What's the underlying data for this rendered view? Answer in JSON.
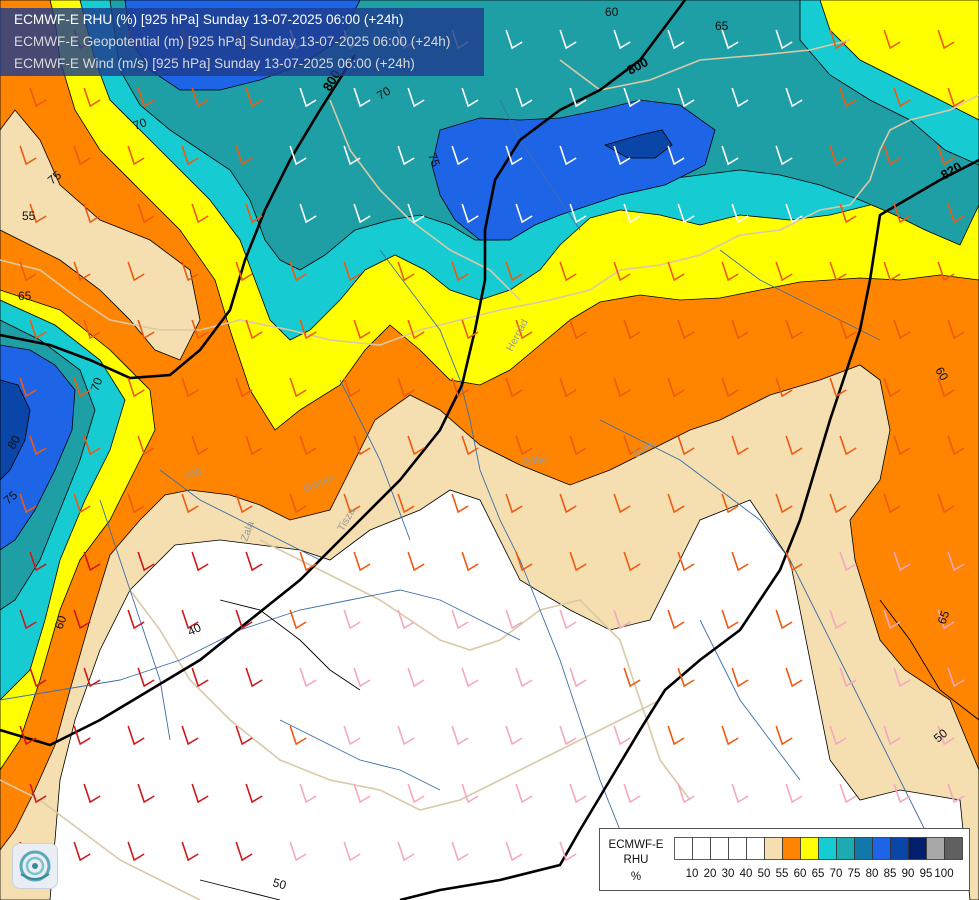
{
  "header": {
    "lines": [
      "ECMWF-E RHU (%) [925 hPa] Sunday 13-07-2025 06:00 (+24h)",
      "ECMWF-E Geopotential (m) [925 hPa] Sunday 13-07-2025 06:00 (+24h)",
      "ECMWF-E Wind (m/s) [925 hPa] Sunday 13-07-2025 06:00 (+24h)"
    ]
  },
  "contour_labels": {
    "rhu": [
      "60",
      "65",
      "70",
      "70",
      "75",
      "75",
      "55",
      "65",
      "70",
      "80",
      "75",
      "60",
      "40",
      "60",
      "65",
      "50",
      "50"
    ],
    "geopotential": [
      "800",
      "820",
      "800"
    ]
  },
  "place_labels": [
    "Hernád",
    "Vág",
    "Garam",
    "Tisza",
    "Zala",
    "Rába",
    "Bükk"
  ],
  "legend": {
    "title_lines": [
      "ECMWF-E",
      "RHU",
      "%"
    ],
    "ticks": [
      "10",
      "20",
      "30",
      "40",
      "50",
      "55",
      "60",
      "65",
      "70",
      "75",
      "80",
      "85",
      "90",
      "95",
      "100"
    ],
    "colors": [
      "#ffffff",
      "#ffffff",
      "#ffffff",
      "#ffffff",
      "#ffffff",
      "#f5deb0",
      "#ff8400",
      "#ffff00",
      "#17cbd2",
      "#1eaab1",
      "#1278aa",
      "#1e64e6",
      "#0a46a8",
      "#041e6e",
      "#a8a8a8",
      "#606060"
    ]
  },
  "colors": {
    "rhu_below_55": "#ffffff",
    "rhu_55": "#f5deb0",
    "rhu_60": "#ff8400",
    "rhu_65": "#ffff00",
    "rhu_70": "#17cbd2",
    "rhu_75": "#1e9fa6",
    "rhu_80": "#1e64e6",
    "rhu_85": "#0a46a8",
    "title_box": "#1e3c8c",
    "geopotential_line": "#000000",
    "river": "#3b6ea8",
    "border": "#d9c9a6",
    "wind_barb_strong": "#cc1a1a",
    "wind_barb_medium": "#ee5a10",
    "wind_barb_light": "#f4a8c0",
    "wind_barb_calm": "#ffffff"
  },
  "logo": {
    "icon": "ecmwf-logo-icon"
  }
}
